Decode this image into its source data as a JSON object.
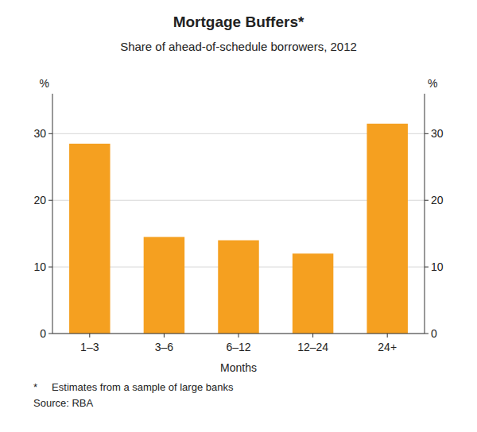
{
  "chart_data": {
    "type": "bar",
    "title": "Mortgage Buffers*",
    "subtitle": "Share of ahead-of-schedule borrowers, 2012",
    "categories": [
      "1–3",
      "3–6",
      "6–12",
      "12–24",
      "24+"
    ],
    "values": [
      28.5,
      14.5,
      14.0,
      12.0,
      31.5
    ],
    "color": "#F5A020",
    "xlabel": "Months",
    "ylabel": "%",
    "y2label": "%",
    "ylim": [
      0,
      36
    ],
    "yticks": [
      0,
      10,
      20,
      30
    ],
    "y2lim": [
      0,
      36
    ],
    "y2ticks": [
      0,
      10,
      20,
      30
    ],
    "grid": true,
    "annotations": [
      "*     Estimates from a sample of large banks",
      "Source: RBA"
    ]
  }
}
